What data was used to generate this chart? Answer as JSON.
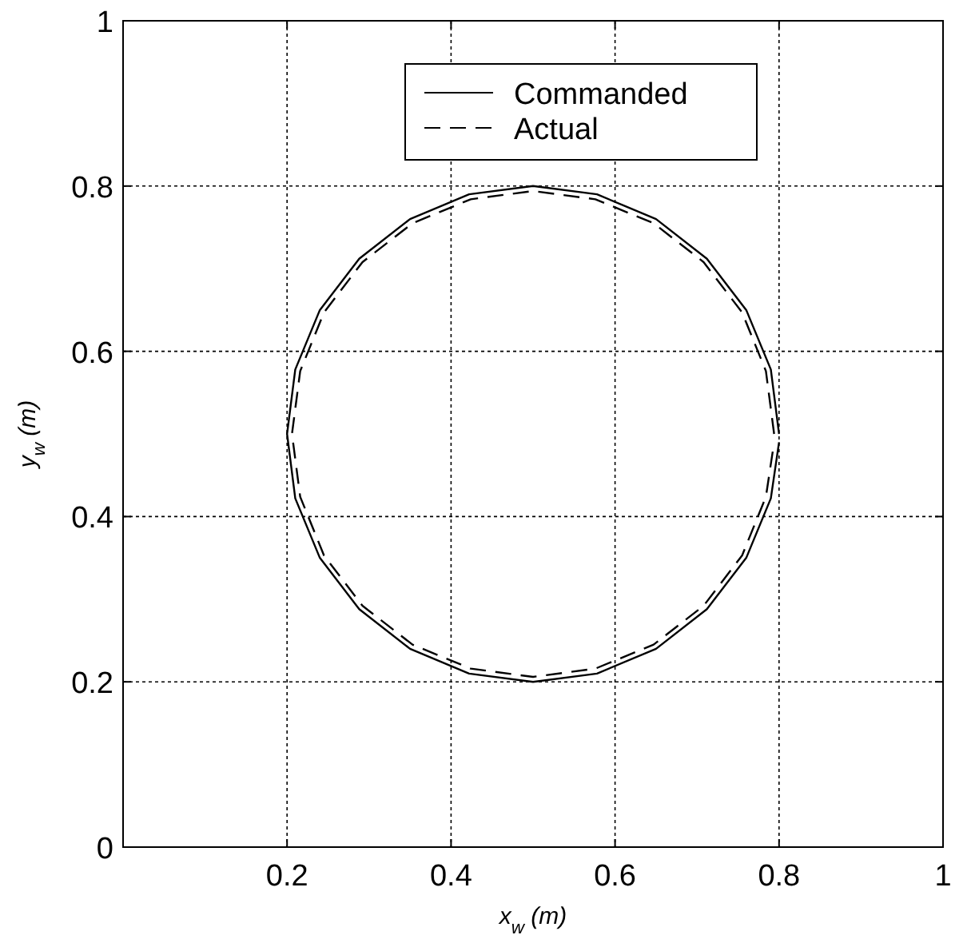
{
  "chart_data": {
    "type": "line",
    "xlabel": "x$_{w}$ (m)",
    "ylabel": "y$_{w}$ (m)",
    "xlim": [
      0,
      1
    ],
    "ylim": [
      0,
      1
    ],
    "xticks": [
      0.2,
      0.4,
      0.6,
      0.8,
      1
    ],
    "yticks": [
      0,
      0.2,
      0.4,
      0.6,
      0.8,
      1
    ],
    "grid": true,
    "legend": "top",
    "series": [
      {
        "name": "Commanded",
        "color": "#000000",
        "line_style": "solid",
        "x": [
          0.8,
          0.79,
          0.76,
          0.712,
          0.65,
          0.578,
          0.5,
          0.422,
          0.35,
          0.288,
          0.24,
          0.21,
          0.2,
          0.21,
          0.24,
          0.288,
          0.35,
          0.422,
          0.5,
          0.578,
          0.65,
          0.712,
          0.76,
          0.79,
          0.8
        ],
        "values": [
          0.5,
          0.578,
          0.65,
          0.712,
          0.76,
          0.79,
          0.8,
          0.79,
          0.76,
          0.712,
          0.65,
          0.578,
          0.5,
          0.422,
          0.35,
          0.288,
          0.24,
          0.21,
          0.2,
          0.21,
          0.24,
          0.288,
          0.35,
          0.422,
          0.49
        ]
      },
      {
        "name": "Actual",
        "color": "#000000",
        "line_style": "dashed",
        "x": [
          0.794,
          0.784,
          0.755,
          0.708,
          0.647,
          0.576,
          0.5,
          0.424,
          0.353,
          0.292,
          0.245,
          0.216,
          0.206,
          0.216,
          0.245,
          0.292,
          0.353,
          0.424,
          0.5,
          0.576,
          0.647,
          0.708,
          0.755,
          0.784,
          0.794
        ],
        "values": [
          0.5,
          0.576,
          0.647,
          0.708,
          0.755,
          0.784,
          0.794,
          0.784,
          0.755,
          0.708,
          0.647,
          0.576,
          0.5,
          0.424,
          0.353,
          0.292,
          0.245,
          0.216,
          0.206,
          0.216,
          0.245,
          0.292,
          0.353,
          0.424,
          0.49
        ]
      }
    ]
  }
}
